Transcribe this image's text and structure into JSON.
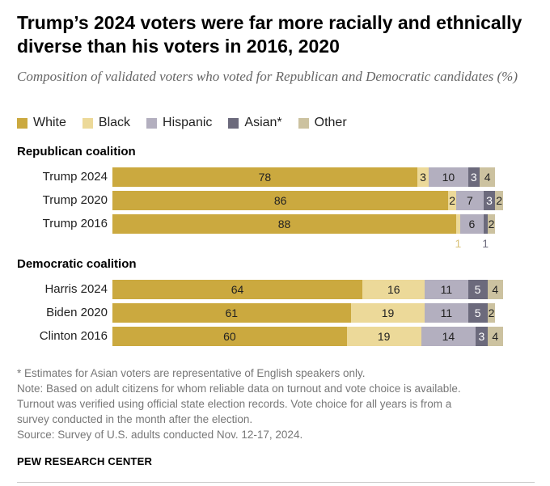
{
  "title": "Trump’s 2024 voters were far more racially and ethnically diverse than his voters in 2016, 2020",
  "subtitle": "Composition of validated voters who voted for Republican and Democratic candidates (%)",
  "colors": {
    "White": "#cba93f",
    "Black": "#ecd999",
    "Hispanic": "#b3afbf",
    "Asian*": "#6c6a7c",
    "Other": "#ccc2a0"
  },
  "chart_data": {
    "type": "bar",
    "orientation": "horizontal",
    "stacked": true,
    "xlim": [
      0,
      100
    ],
    "legend": [
      "White",
      "Black",
      "Hispanic",
      "Asian*",
      "Other"
    ],
    "legend_position": "top-left",
    "groups": [
      {
        "name": "Republican coalition",
        "rows": [
          {
            "label": "Trump 2024",
            "values": [
              78,
              3,
              10,
              3,
              4
            ]
          },
          {
            "label": "Trump 2020",
            "values": [
              86,
              2,
              7,
              3,
              2
            ]
          },
          {
            "label": "Trump 2016",
            "values": [
              88,
              1,
              6,
              1,
              2
            ]
          }
        ]
      },
      {
        "name": "Democratic coalition",
        "rows": [
          {
            "label": "Harris 2024",
            "values": [
              64,
              16,
              11,
              5,
              4
            ]
          },
          {
            "label": "Biden 2020",
            "values": [
              61,
              19,
              11,
              5,
              2
            ]
          },
          {
            "label": "Clinton 2016",
            "values": [
              60,
              19,
              14,
              3,
              4
            ]
          }
        ]
      }
    ]
  },
  "notes": [
    "* Estimates for Asian voters are representative of English speakers only.",
    "Note: Based on adult citizens for whom reliable data on turnout and vote choice is available.",
    "Turnout was verified using official state election records. Vote choice for all years is from a",
    "survey conducted in the month after the election.",
    "Source: Survey of U.S. adults conducted Nov. 12-17, 2024."
  ],
  "brand": "PEW RESEARCH CENTER"
}
